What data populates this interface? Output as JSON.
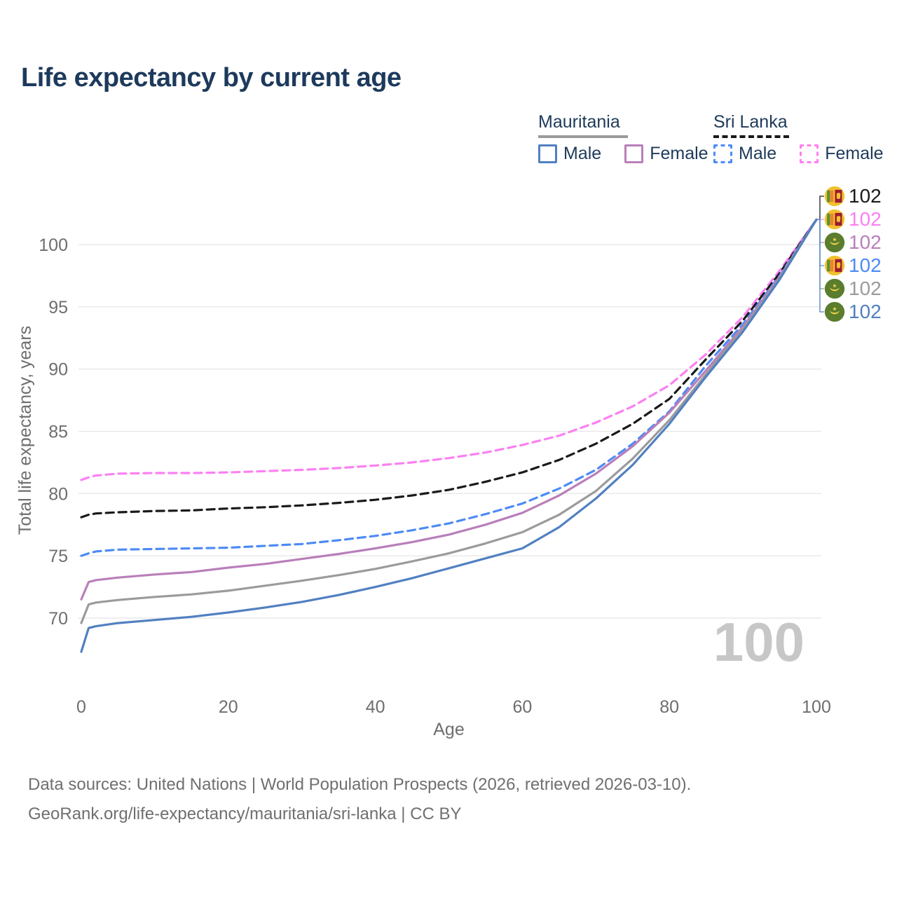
{
  "title": "Life expectancy by current age",
  "legend": {
    "groups": [
      {
        "label": "Mauritania",
        "line_style": "solid",
        "color": "#9b9b9b",
        "items": [
          {
            "label": "Male",
            "color": "#5180c1"
          },
          {
            "label": "Female",
            "color": "#b97fba"
          }
        ]
      },
      {
        "label": "Sri Lanka",
        "line_style": "dashed",
        "color": "#1a1a1a",
        "items": [
          {
            "label": "Male",
            "color": "#4d8bf5"
          },
          {
            "label": "Female",
            "color": "#fb80f2"
          }
        ]
      }
    ]
  },
  "chart_data": {
    "type": "line",
    "title": "Life expectancy by current age",
    "xlabel": "Age",
    "ylabel": "Total life expectancy, years",
    "watermark": "100",
    "xlim": [
      0,
      100
    ],
    "ylim": [
      66.5,
      103.5
    ],
    "x_ticks": [
      0,
      20,
      40,
      60,
      80,
      100
    ],
    "y_ticks": [
      70,
      75,
      80,
      85,
      90,
      95,
      100
    ],
    "grid": "horizontal",
    "legend_position": "top-right",
    "x": [
      0,
      1,
      2,
      5,
      10,
      15,
      20,
      25,
      30,
      35,
      40,
      45,
      50,
      55,
      60,
      65,
      70,
      75,
      80,
      85,
      90,
      95,
      100
    ],
    "series": [
      {
        "id": "sri-lanka-female",
        "name": "Sri Lanka Female",
        "color": "#fb80f2",
        "dashed": true,
        "values": [
          81.1,
          81.3,
          81.45,
          81.6,
          81.65,
          81.65,
          81.7,
          81.8,
          81.9,
          82.05,
          82.25,
          82.5,
          82.85,
          83.3,
          83.9,
          84.65,
          85.7,
          87.0,
          88.7,
          91.2,
          94.2,
          97.9,
          102
        ]
      },
      {
        "id": "sri-lanka-both",
        "name": "Sri Lanka (both sexes)",
        "color": "#1a1a1a",
        "dashed": true,
        "values": [
          78.1,
          78.3,
          78.4,
          78.5,
          78.6,
          78.65,
          78.8,
          78.9,
          79.05,
          79.25,
          79.5,
          79.85,
          80.3,
          80.95,
          81.7,
          82.7,
          84.0,
          85.6,
          87.6,
          90.8,
          93.9,
          97.7,
          102
        ]
      },
      {
        "id": "sri-lanka-male",
        "name": "Sri Lanka Male",
        "color": "#4d8bf5",
        "dashed": true,
        "values": [
          75.0,
          75.2,
          75.35,
          75.5,
          75.55,
          75.6,
          75.65,
          75.8,
          75.95,
          76.25,
          76.6,
          77.05,
          77.6,
          78.35,
          79.2,
          80.4,
          81.9,
          84.0,
          86.6,
          90.3,
          93.6,
          97.5,
          102
        ]
      },
      {
        "id": "mauritania-female",
        "name": "Mauritania Female",
        "color": "#b97fba",
        "dashed": false,
        "values": [
          71.5,
          72.9,
          73.05,
          73.25,
          73.5,
          73.7,
          74.05,
          74.35,
          74.75,
          75.15,
          75.6,
          76.1,
          76.7,
          77.5,
          78.45,
          79.85,
          81.6,
          83.8,
          86.5,
          89.9,
          93.4,
          97.4,
          102
        ]
      },
      {
        "id": "mauritania-both",
        "name": "Mauritania (both sexes)",
        "color": "#9b9b9b",
        "dashed": false,
        "values": [
          69.6,
          71.1,
          71.25,
          71.45,
          71.7,
          71.9,
          72.2,
          72.6,
          73.0,
          73.45,
          73.95,
          74.55,
          75.2,
          76.0,
          76.9,
          78.3,
          80.2,
          82.8,
          85.9,
          89.6,
          93.2,
          97.3,
          102
        ]
      },
      {
        "id": "mauritania-male",
        "name": "Mauritania Male",
        "color": "#5180c1",
        "dashed": false,
        "values": [
          67.3,
          69.2,
          69.35,
          69.6,
          69.85,
          70.1,
          70.45,
          70.85,
          71.3,
          71.85,
          72.5,
          73.2,
          74.0,
          74.8,
          75.6,
          77.3,
          79.6,
          82.3,
          85.6,
          89.4,
          93.0,
          97.2,
          102
        ]
      }
    ],
    "end_labels": [
      {
        "value": "102",
        "color": "#1a1a1a",
        "flag": "sri-lanka",
        "series": "sri-lanka-both"
      },
      {
        "value": "102",
        "color": "#fb80f2",
        "flag": "sri-lanka",
        "series": "sri-lanka-female"
      },
      {
        "value": "102",
        "color": "#b97fba",
        "flag": "mauritania",
        "series": "mauritania-female"
      },
      {
        "value": "102",
        "color": "#4d8bf5",
        "flag": "sri-lanka",
        "series": "sri-lanka-male"
      },
      {
        "value": "102",
        "color": "#9b9b9b",
        "flag": "mauritania",
        "series": "mauritania-both"
      },
      {
        "value": "102",
        "color": "#5180c1",
        "flag": "mauritania",
        "series": "mauritania-male"
      }
    ]
  },
  "footer": {
    "line1": "Data sources: United Nations | World Population Prospects (2026, retrieved 2026-03-10).",
    "line2": "GeoRank.org/life-expectancy/mauritania/sri-lanka | CC BY"
  }
}
